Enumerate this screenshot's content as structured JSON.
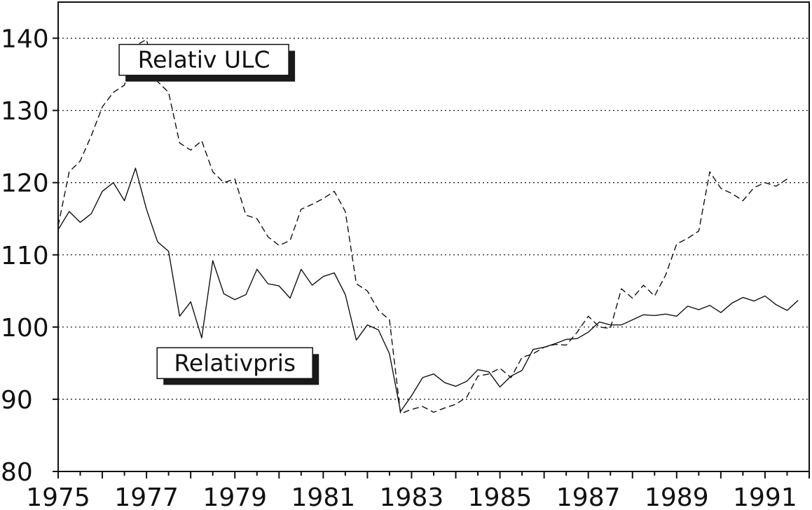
{
  "chart_data": {
    "type": "line",
    "title": "",
    "xlabel": "",
    "ylabel": "",
    "xlim": [
      1975,
      1992
    ],
    "ylim": [
      80,
      145
    ],
    "x_ticks": [
      "1975",
      "1977",
      "1979",
      "1981",
      "1983",
      "1985",
      "1987",
      "1989",
      "1991"
    ],
    "y_ticks": [
      "80",
      "90",
      "100",
      "110",
      "120",
      "130",
      "140"
    ],
    "grid": "horizontal dotted",
    "series": [
      {
        "name": "Relativ ULC",
        "style": "dashed",
        "points": [
          [
            1975.0,
            114.0
          ],
          [
            1975.25,
            121.5
          ],
          [
            1975.5,
            123.0
          ],
          [
            1975.75,
            126.5
          ],
          [
            1976.0,
            130.5
          ],
          [
            1976.25,
            132.5
          ],
          [
            1976.5,
            133.5
          ],
          [
            1976.75,
            139.0
          ],
          [
            1977.0,
            139.8
          ],
          [
            1977.25,
            134.0
          ],
          [
            1977.5,
            132.5
          ],
          [
            1977.75,
            125.5
          ],
          [
            1978.0,
            124.5
          ],
          [
            1978.25,
            125.8
          ],
          [
            1978.5,
            121.5
          ],
          [
            1978.75,
            120.0
          ],
          [
            1979.0,
            120.5
          ],
          [
            1979.25,
            115.5
          ],
          [
            1979.5,
            115.0
          ],
          [
            1979.75,
            112.5
          ],
          [
            1980.0,
            111.3
          ],
          [
            1980.25,
            112.0
          ],
          [
            1980.5,
            116.3
          ],
          [
            1980.75,
            117.0
          ],
          [
            1981.0,
            117.8
          ],
          [
            1981.25,
            118.8
          ],
          [
            1981.5,
            116.0
          ],
          [
            1981.75,
            106.0
          ],
          [
            1982.0,
            105.0
          ],
          [
            1982.25,
            102.3
          ],
          [
            1982.5,
            101.0
          ],
          [
            1982.75,
            88.0
          ],
          [
            1983.0,
            88.6
          ],
          [
            1983.25,
            89.0
          ],
          [
            1983.5,
            88.2
          ],
          [
            1983.75,
            88.8
          ],
          [
            1984.0,
            89.3
          ],
          [
            1984.25,
            90.3
          ],
          [
            1984.5,
            93.2
          ],
          [
            1984.75,
            93.5
          ],
          [
            1985.0,
            94.3
          ],
          [
            1985.25,
            93.0
          ],
          [
            1985.5,
            95.8
          ],
          [
            1985.75,
            96.3
          ],
          [
            1986.0,
            97.2
          ],
          [
            1986.25,
            97.6
          ],
          [
            1986.5,
            97.5
          ],
          [
            1986.75,
            99.3
          ],
          [
            1987.0,
            101.5
          ],
          [
            1987.25,
            100.0
          ],
          [
            1987.5,
            99.8
          ],
          [
            1987.75,
            105.3
          ],
          [
            1988.0,
            104.0
          ],
          [
            1988.25,
            105.8
          ],
          [
            1988.5,
            104.3
          ],
          [
            1988.75,
            107.2
          ],
          [
            1989.0,
            111.5
          ],
          [
            1989.25,
            112.3
          ],
          [
            1989.5,
            113.3
          ],
          [
            1989.75,
            121.5
          ],
          [
            1990.0,
            119.2
          ],
          [
            1990.25,
            118.5
          ],
          [
            1990.5,
            117.5
          ],
          [
            1990.75,
            119.3
          ],
          [
            1991.0,
            120.0
          ],
          [
            1991.25,
            119.5
          ],
          [
            1991.5,
            120.5
          ]
        ]
      },
      {
        "name": "Relativpris",
        "style": "solid",
        "points": [
          [
            1975.0,
            113.5
          ],
          [
            1975.25,
            116.0
          ],
          [
            1975.5,
            114.5
          ],
          [
            1975.75,
            115.7
          ],
          [
            1976.0,
            118.8
          ],
          [
            1976.25,
            120.0
          ],
          [
            1976.5,
            117.5
          ],
          [
            1976.75,
            122.0
          ],
          [
            1977.0,
            116.3
          ],
          [
            1977.25,
            111.8
          ],
          [
            1977.5,
            110.5
          ],
          [
            1977.75,
            101.5
          ],
          [
            1978.0,
            103.5
          ],
          [
            1978.25,
            98.5
          ],
          [
            1978.5,
            109.2
          ],
          [
            1978.75,
            104.6
          ],
          [
            1979.0,
            103.8
          ],
          [
            1979.25,
            104.5
          ],
          [
            1979.5,
            108.0
          ],
          [
            1979.75,
            106.0
          ],
          [
            1980.0,
            105.7
          ],
          [
            1980.25,
            104.0
          ],
          [
            1980.5,
            108.0
          ],
          [
            1980.75,
            105.8
          ],
          [
            1981.0,
            107.0
          ],
          [
            1981.25,
            107.5
          ],
          [
            1981.5,
            104.5
          ],
          [
            1981.75,
            98.2
          ],
          [
            1982.0,
            100.3
          ],
          [
            1982.25,
            99.6
          ],
          [
            1982.5,
            96.3
          ],
          [
            1982.75,
            88.3
          ],
          [
            1983.0,
            90.5
          ],
          [
            1983.25,
            93.0
          ],
          [
            1983.5,
            93.5
          ],
          [
            1983.75,
            92.3
          ],
          [
            1984.0,
            91.8
          ],
          [
            1984.25,
            92.5
          ],
          [
            1984.5,
            94.1
          ],
          [
            1984.75,
            93.8
          ],
          [
            1985.0,
            91.7
          ],
          [
            1985.25,
            93.2
          ],
          [
            1985.5,
            94.0
          ],
          [
            1985.75,
            96.9
          ],
          [
            1986.0,
            97.2
          ],
          [
            1986.25,
            97.7
          ],
          [
            1986.5,
            98.3
          ],
          [
            1986.75,
            98.4
          ],
          [
            1987.0,
            99.3
          ],
          [
            1987.25,
            100.7
          ],
          [
            1987.5,
            100.3
          ],
          [
            1987.75,
            100.3
          ],
          [
            1988.0,
            101.0
          ],
          [
            1988.25,
            101.7
          ],
          [
            1988.5,
            101.6
          ],
          [
            1988.75,
            101.8
          ],
          [
            1989.0,
            101.5
          ],
          [
            1989.25,
            102.9
          ],
          [
            1989.5,
            102.4
          ],
          [
            1989.75,
            103.0
          ],
          [
            1990.0,
            102.0
          ],
          [
            1990.25,
            103.3
          ],
          [
            1990.5,
            104.1
          ],
          [
            1990.75,
            103.6
          ],
          [
            1991.0,
            104.3
          ],
          [
            1991.25,
            103.1
          ],
          [
            1991.5,
            102.3
          ],
          [
            1991.75,
            103.7
          ]
        ]
      }
    ],
    "labels": {
      "ulc": "Relativ ULC",
      "pris": "Relativpris"
    },
    "annotation_anchor": {
      "ulc": [
        1978.3,
        137.0
      ],
      "pris": [
        1979.0,
        95.0
      ]
    }
  }
}
